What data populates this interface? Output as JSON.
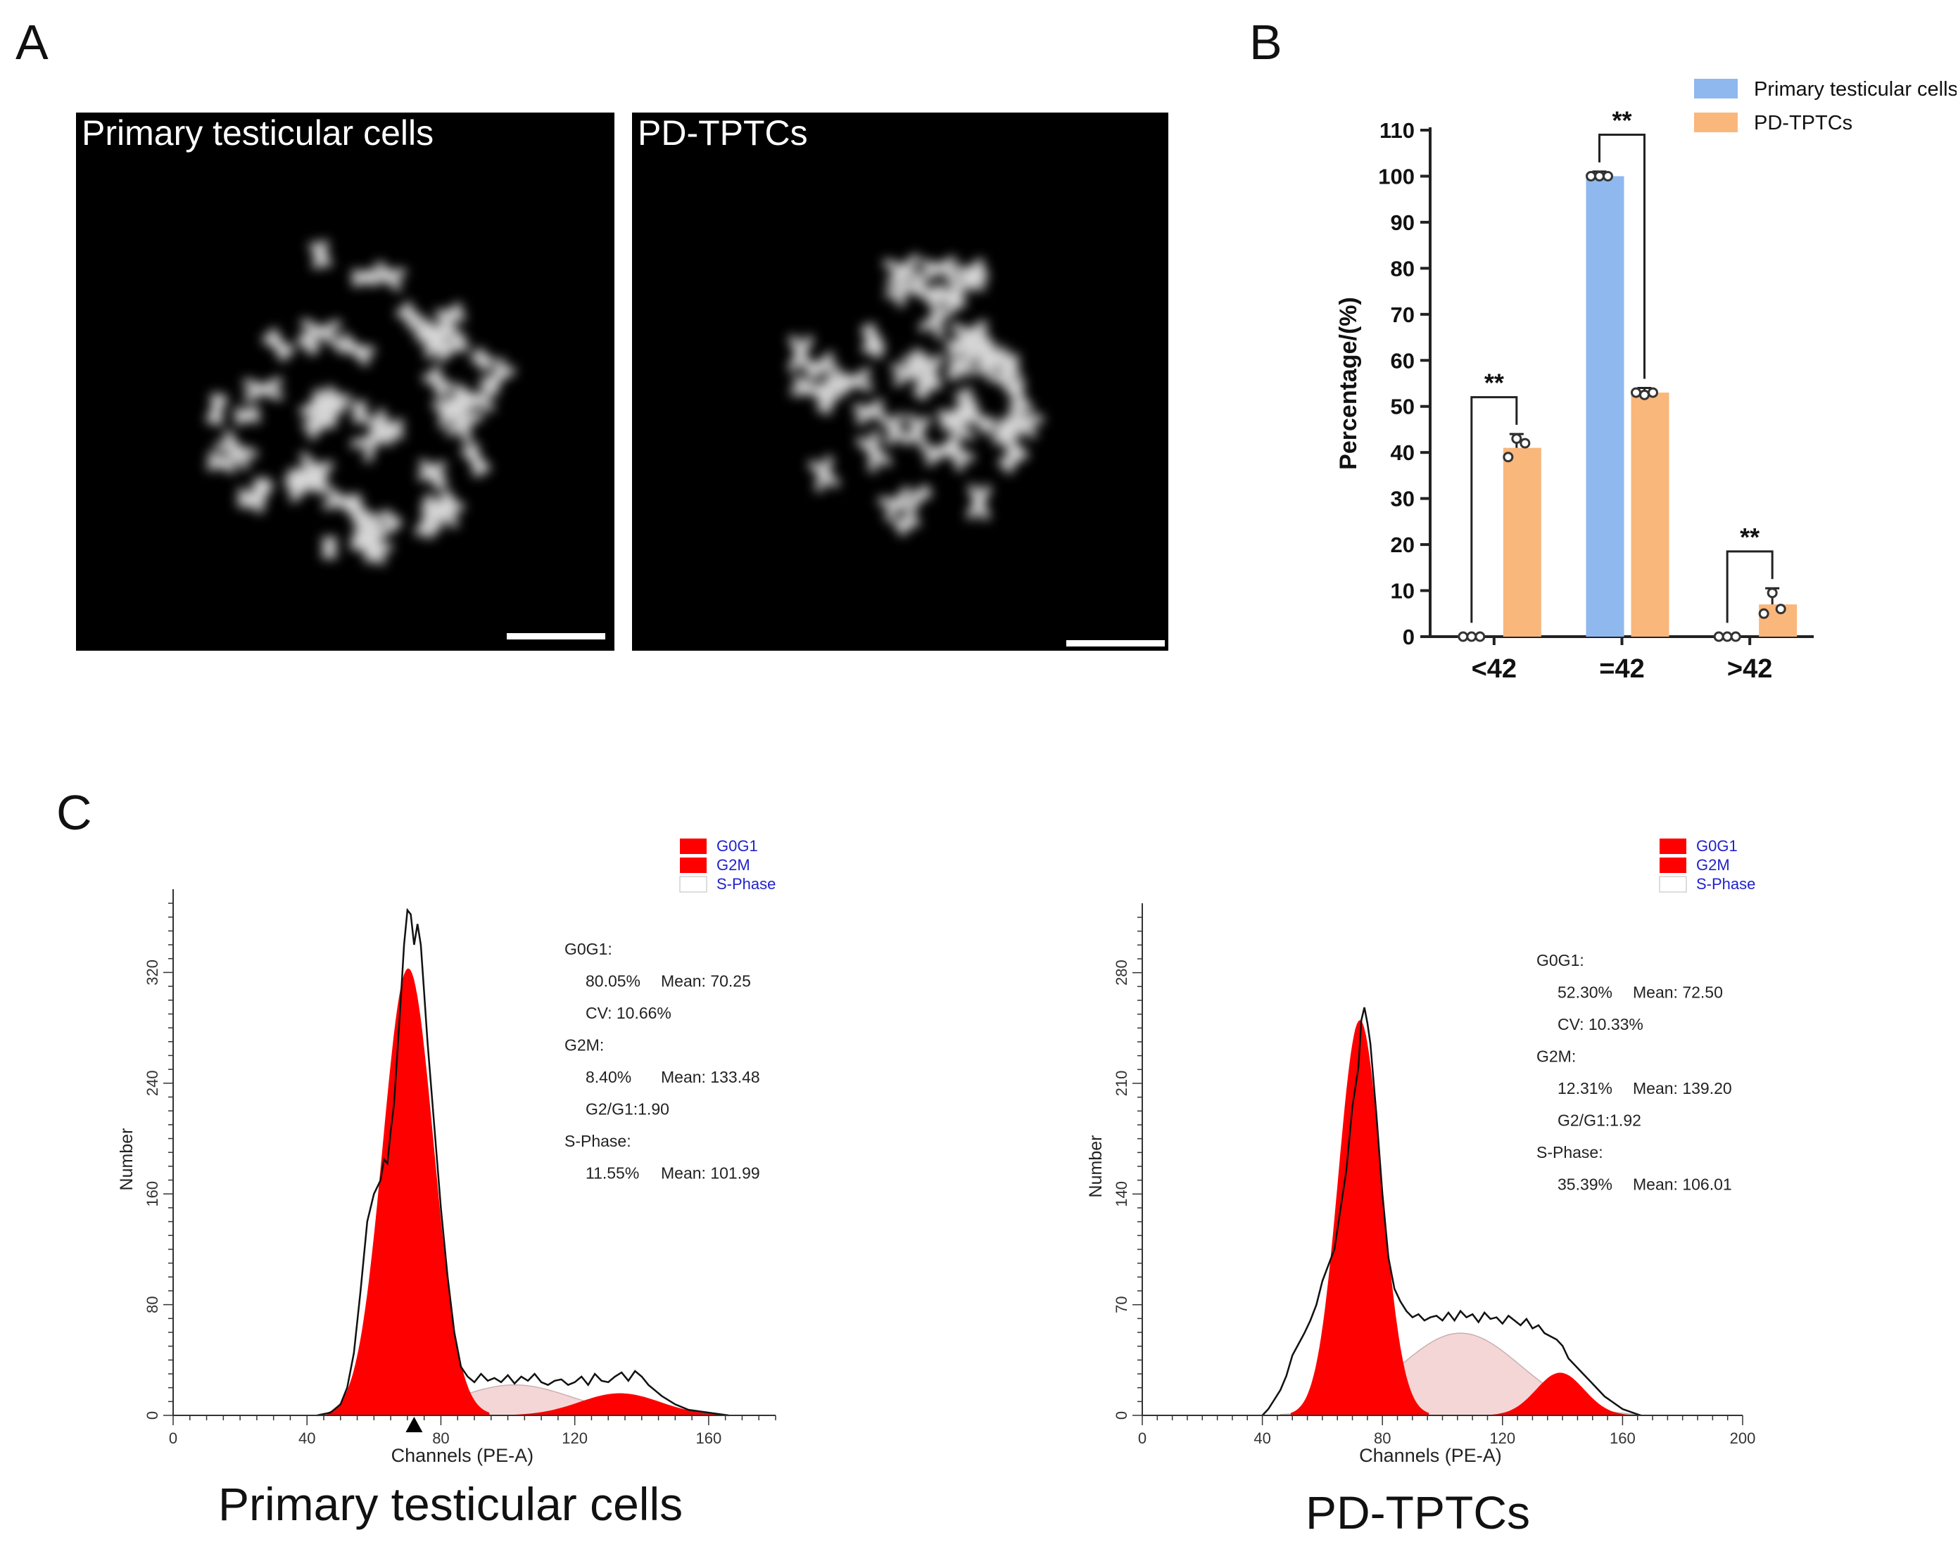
{
  "panels": {
    "a": "A",
    "b": "B",
    "c": "C"
  },
  "micrographs": [
    {
      "title": "Primary testicular cells"
    },
    {
      "title": "PD-TPTCs"
    }
  ],
  "colors": {
    "primary": "#8fb8ee",
    "pd": "#f9b77b",
    "g0g1": "#ff0000",
    "g2m": "#ff0000",
    "sphase": "#f5d6d6",
    "legend_text": "#2222cc"
  },
  "chart_data": [
    {
      "type": "bar",
      "title": "",
      "ylabel": "Percentage/(%)",
      "xlabel": "",
      "categories": [
        "<42",
        "=42",
        ">42"
      ],
      "ylim": [
        0,
        110
      ],
      "yticks": [
        0,
        10,
        20,
        30,
        40,
        50,
        60,
        70,
        80,
        90,
        100,
        110
      ],
      "series": [
        {
          "name": "Primary testicular cells",
          "values": [
            0,
            100,
            0
          ],
          "points": [
            [
              0,
              0,
              0
            ],
            [
              100,
              100,
              100
            ],
            [
              0,
              0,
              0
            ]
          ]
        },
        {
          "name": "PD-TPTCs",
          "values": [
            41,
            53,
            7
          ],
          "points": [
            [
              39,
              43,
              42
            ],
            [
              53,
              52.5,
              53
            ],
            [
              5,
              9.5,
              6
            ]
          ]
        }
      ],
      "significance": [
        "**",
        "**",
        "**"
      ],
      "legend": "top-right"
    },
    {
      "type": "area",
      "title": "Primary testicular cells",
      "xlabel": "Channels (PE-A)",
      "ylabel": "Number",
      "xlim": [
        0,
        180
      ],
      "ylim": [
        0,
        370
      ],
      "xticks": [
        0,
        40,
        80,
        120,
        160
      ],
      "yticks": [
        0,
        80,
        160,
        240,
        320
      ],
      "legend": [
        "G0G1",
        "G2M",
        "S-Phase"
      ],
      "stats": [
        {
          "label": "G0G1:"
        },
        {
          "a": "80.05%",
          "b": "Mean: 70.25"
        },
        {
          "a": "CV: 10.66%"
        },
        {
          "label": "G2M:"
        },
        {
          "a": "8.40%",
          "b": "Mean: 133.48"
        },
        {
          "a": "G2/G1:1.90"
        },
        {
          "label": "S-Phase:"
        },
        {
          "a": "11.55%",
          "b": "Mean: 101.99"
        }
      ],
      "g0g1": {
        "mean": 70.25,
        "peak": 323,
        "sd": 7.6
      },
      "g2m": {
        "mean": 133.48,
        "peak": 16,
        "sd": 12
      },
      "sphase": {
        "mean": 101.99,
        "peak": 22,
        "sd": 17
      },
      "marker_x": 72,
      "histogram": [
        [
          43,
          0
        ],
        [
          47,
          2
        ],
        [
          50,
          8
        ],
        [
          52,
          20
        ],
        [
          54,
          45
        ],
        [
          56,
          90
        ],
        [
          58,
          140
        ],
        [
          60,
          160
        ],
        [
          62,
          170
        ],
        [
          63,
          185
        ],
        [
          64,
          182
        ],
        [
          65,
          205
        ],
        [
          66,
          225
        ],
        [
          67,
          262
        ],
        [
          68,
          300
        ],
        [
          69,
          340
        ],
        [
          70,
          365
        ],
        [
          71,
          362
        ],
        [
          72,
          340
        ],
        [
          73,
          355
        ],
        [
          74,
          340
        ],
        [
          75,
          305
        ],
        [
          76,
          270
        ],
        [
          78,
          210
        ],
        [
          80,
          150
        ],
        [
          82,
          100
        ],
        [
          84,
          60
        ],
        [
          86,
          35
        ],
        [
          88,
          28
        ],
        [
          90,
          24
        ],
        [
          92,
          30
        ],
        [
          94,
          25
        ],
        [
          96,
          27
        ],
        [
          98,
          24
        ],
        [
          100,
          29
        ],
        [
          102,
          23
        ],
        [
          104,
          28
        ],
        [
          106,
          25
        ],
        [
          108,
          30
        ],
        [
          110,
          24
        ],
        [
          112,
          22
        ],
        [
          114,
          25
        ],
        [
          116,
          26
        ],
        [
          118,
          22
        ],
        [
          120,
          24
        ],
        [
          122,
          28
        ],
        [
          124,
          22
        ],
        [
          126,
          30
        ],
        [
          128,
          25
        ],
        [
          130,
          24
        ],
        [
          132,
          28
        ],
        [
          134,
          31
        ],
        [
          136,
          25
        ],
        [
          138,
          32
        ],
        [
          140,
          28
        ],
        [
          142,
          22
        ],
        [
          144,
          18
        ],
        [
          146,
          14
        ],
        [
          150,
          8
        ],
        [
          154,
          4
        ],
        [
          160,
          2
        ],
        [
          166,
          0
        ]
      ]
    },
    {
      "type": "area",
      "title": "PD-TPTCs",
      "xlabel": "Channels (PE-A)",
      "ylabel": "Number",
      "xlim": [
        0,
        200
      ],
      "ylim": [
        0,
        315
      ],
      "xticks": [
        0,
        40,
        80,
        120,
        160,
        200
      ],
      "yticks": [
        0,
        70,
        140,
        210,
        280
      ],
      "legend": [
        "G0G1",
        "G2M",
        "S-Phase"
      ],
      "stats": [
        {
          "label": "G0G1:"
        },
        {
          "a": "52.30%",
          "b": "Mean: 72.50"
        },
        {
          "a": "CV: 10.33%"
        },
        {
          "label": "G2M:"
        },
        {
          "a": "12.31%",
          "b": "Mean: 139.20"
        },
        {
          "a": "G2/G1:1.92"
        },
        {
          "label": "S-Phase:"
        },
        {
          "a": "35.39%",
          "b": "Mean: 106.01"
        }
      ],
      "g0g1": {
        "mean": 72.5,
        "peak": 250,
        "sd": 7.2
      },
      "g2m": {
        "mean": 139.2,
        "peak": 27,
        "sd": 8
      },
      "sphase": {
        "mean": 106.01,
        "peak": 52,
        "sd": 20
      },
      "marker_x": null,
      "histogram": [
        [
          40,
          0
        ],
        [
          42,
          4
        ],
        [
          44,
          10
        ],
        [
          46,
          16
        ],
        [
          48,
          25
        ],
        [
          50,
          38
        ],
        [
          52,
          45
        ],
        [
          54,
          52
        ],
        [
          56,
          60
        ],
        [
          58,
          70
        ],
        [
          60,
          85
        ],
        [
          62,
          95
        ],
        [
          64,
          105
        ],
        [
          66,
          130
        ],
        [
          68,
          155
        ],
        [
          70,
          195
        ],
        [
          72,
          220
        ],
        [
          73,
          250
        ],
        [
          74,
          258
        ],
        [
          75,
          248
        ],
        [
          76,
          235
        ],
        [
          78,
          190
        ],
        [
          80,
          140
        ],
        [
          82,
          100
        ],
        [
          84,
          80
        ],
        [
          86,
          72
        ],
        [
          88,
          66
        ],
        [
          90,
          62
        ],
        [
          92,
          64
        ],
        [
          94,
          60
        ],
        [
          96,
          62
        ],
        [
          98,
          63
        ],
        [
          100,
          60
        ],
        [
          102,
          65
        ],
        [
          104,
          60
        ],
        [
          106,
          66
        ],
        [
          108,
          62
        ],
        [
          110,
          64
        ],
        [
          112,
          59
        ],
        [
          114,
          65
        ],
        [
          116,
          61
        ],
        [
          118,
          62
        ],
        [
          120,
          58
        ],
        [
          122,
          63
        ],
        [
          124,
          60
        ],
        [
          126,
          57
        ],
        [
          128,
          61
        ],
        [
          130,
          55
        ],
        [
          132,
          57
        ],
        [
          134,
          52
        ],
        [
          136,
          50
        ],
        [
          138,
          48
        ],
        [
          140,
          44
        ],
        [
          142,
          36
        ],
        [
          144,
          32
        ],
        [
          146,
          28
        ],
        [
          150,
          20
        ],
        [
          154,
          12
        ],
        [
          160,
          4
        ],
        [
          166,
          0
        ]
      ]
    }
  ]
}
